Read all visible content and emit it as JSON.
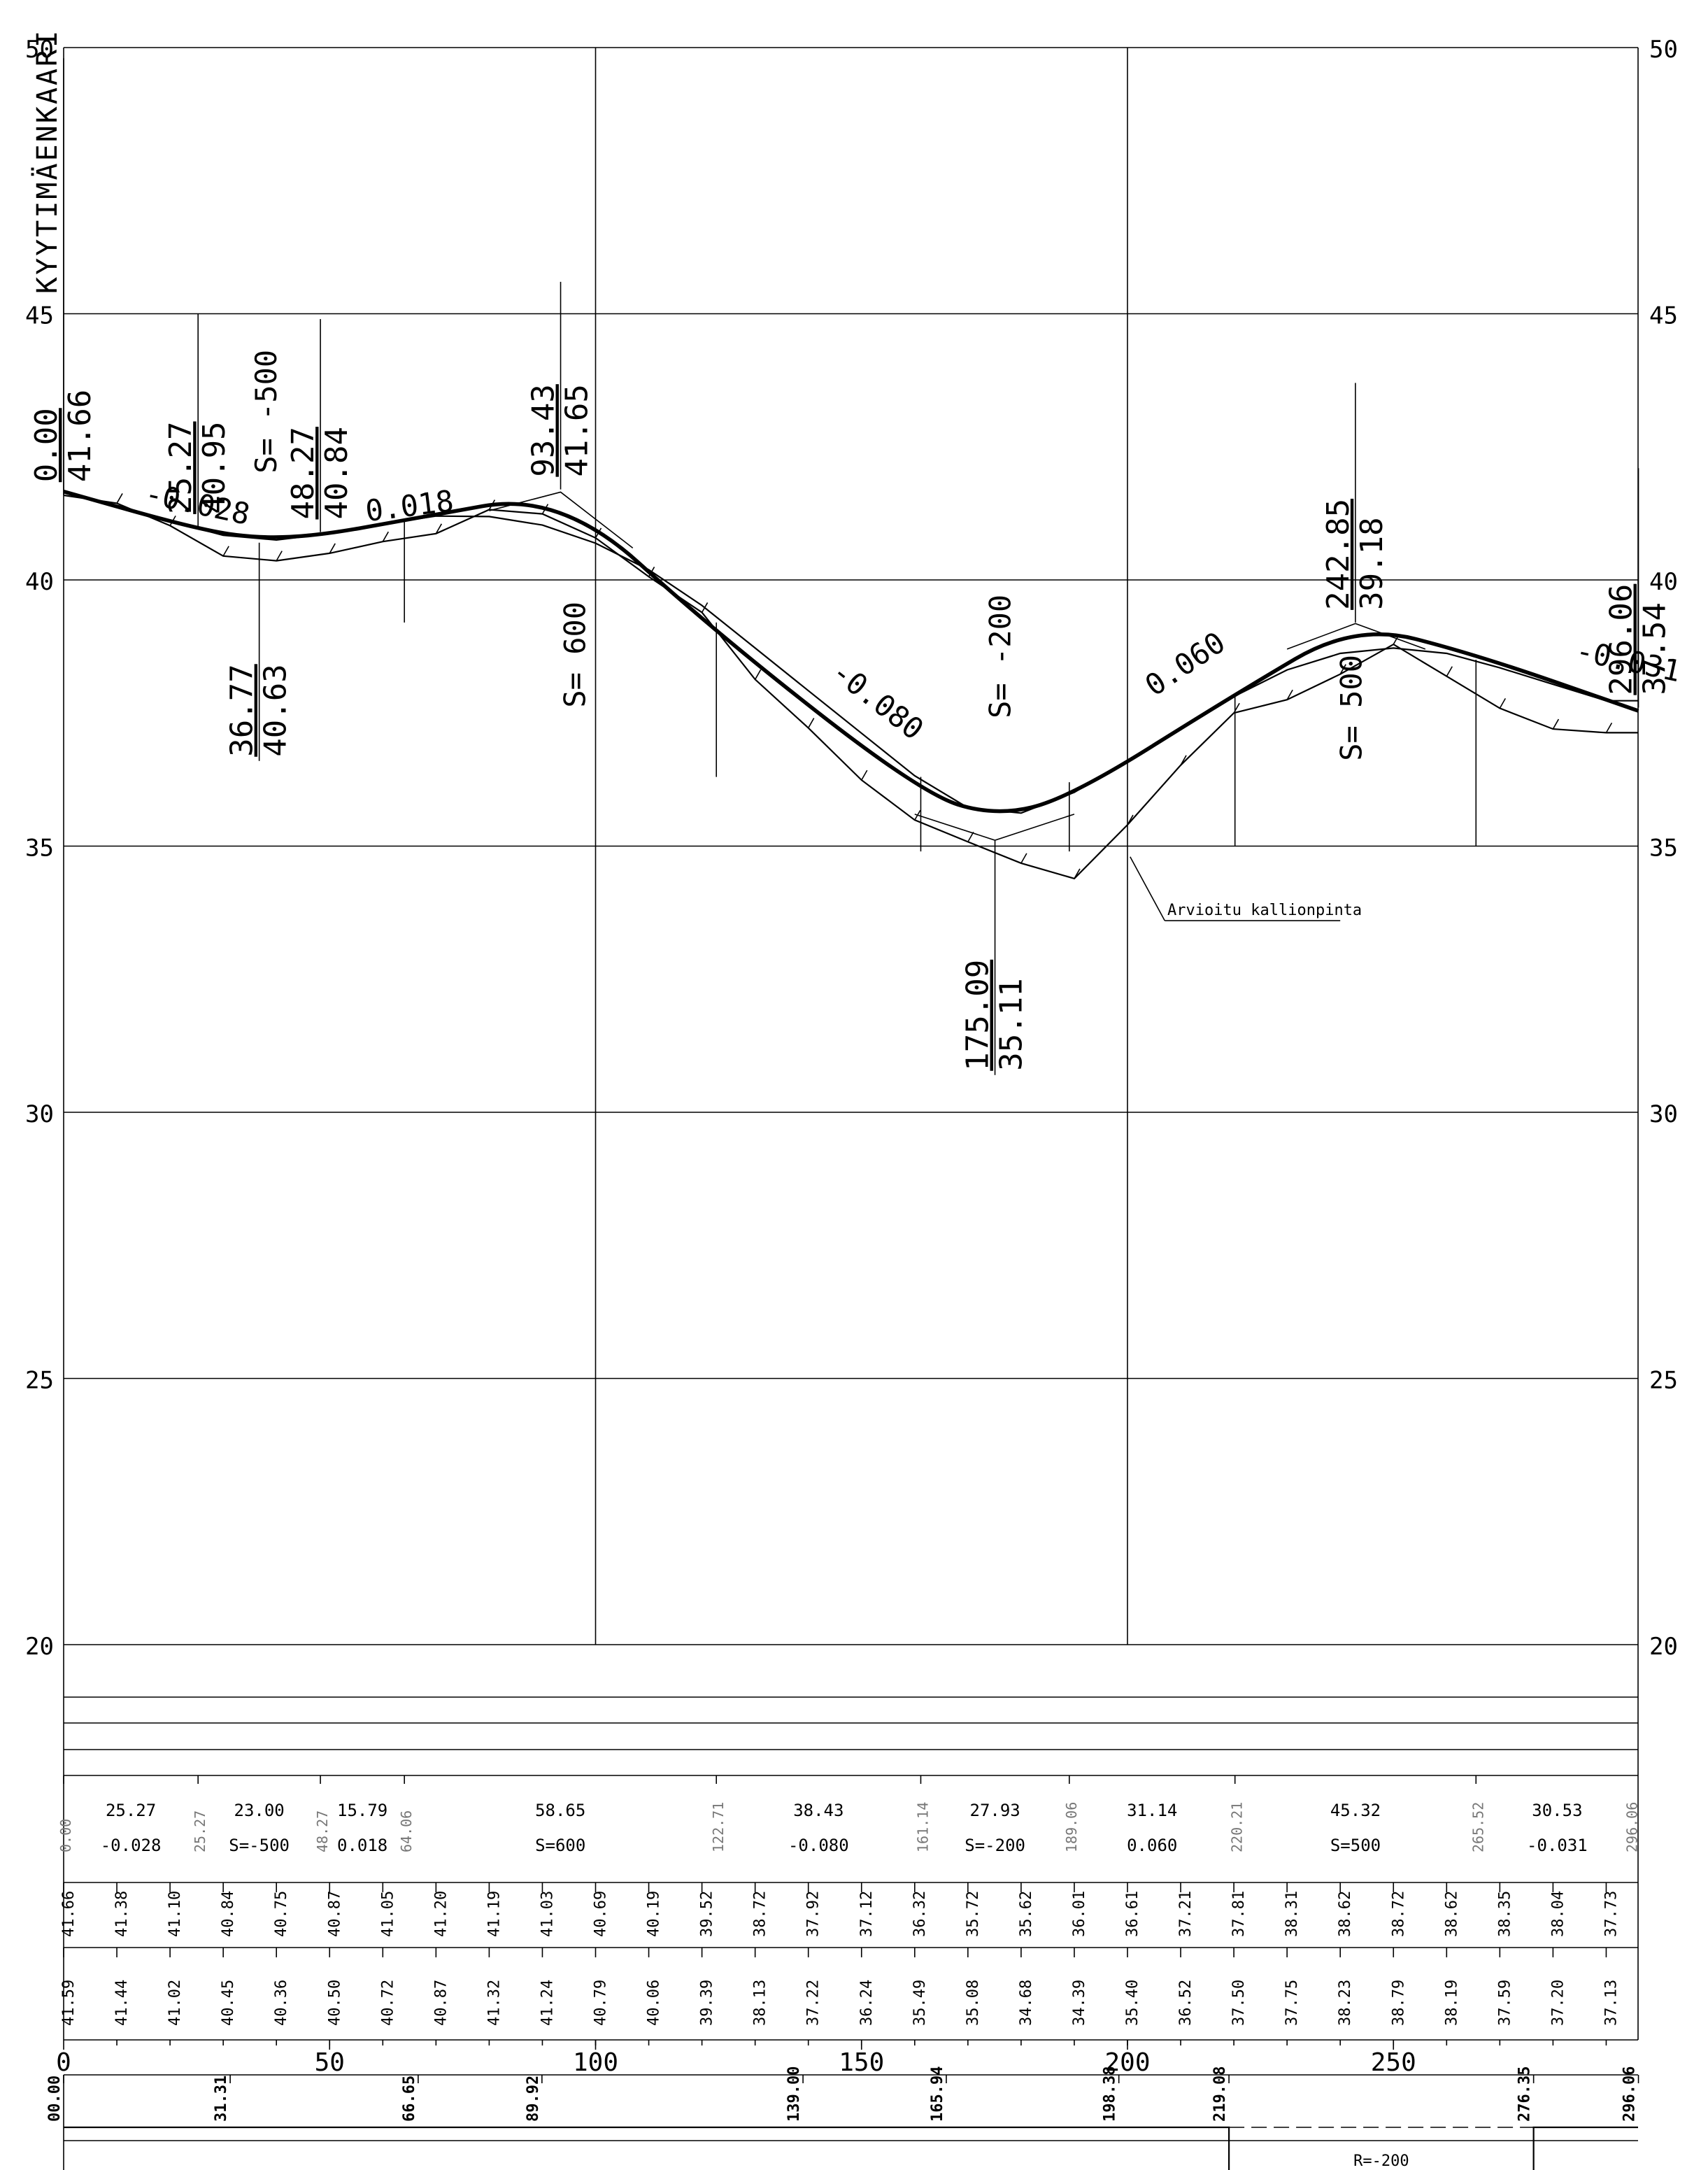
{
  "road_name": "KYYTIMÄENKAARI",
  "chart_data": {
    "type": "line",
    "title": "",
    "xlabel": "",
    "ylabel": "",
    "xlim": [
      0,
      296.06
    ],
    "ylim": [
      20,
      50
    ],
    "y_ticks": [
      "50",
      "45",
      "40",
      "35",
      "30",
      "25",
      "20"
    ],
    "x_ticks": [
      "0",
      "50",
      "100",
      "150",
      "200",
      "250"
    ],
    "grid": true,
    "design_line": {
      "x": [
        0,
        25.27,
        36.77,
        48.27,
        64.06,
        93.43,
        122.71,
        161.14,
        175.09,
        189.06,
        220.21,
        242.85,
        265.52,
        296.06
      ],
      "y": [
        41.66,
        40.95,
        40.78,
        40.84,
        41.12,
        41.65,
        39.0,
        36.0,
        35.56,
        35.9,
        37.85,
        39.18,
        38.6,
        37.54
      ]
    },
    "ground_line": {
      "x": [
        0,
        10,
        20,
        30,
        40,
        50,
        60,
        70,
        80,
        90,
        100,
        110,
        120,
        130,
        140,
        150,
        160,
        170,
        180,
        190,
        200,
        210,
        220,
        230,
        240,
        250,
        260,
        270,
        280,
        290,
        296.06
      ],
      "y": [
        41.66,
        41.38,
        41.1,
        40.84,
        40.75,
        40.87,
        41.05,
        41.2,
        41.19,
        41.03,
        40.69,
        40.19,
        39.52,
        38.72,
        37.92,
        37.12,
        36.32,
        35.72,
        35.62,
        36.01,
        36.61,
        37.21,
        37.81,
        38.31,
        38.62,
        38.72,
        38.62,
        38.35,
        38.04,
        37.73,
        37.73
      ]
    },
    "rock_line": {
      "x": [
        0,
        10,
        20,
        30,
        40,
        50,
        60,
        70,
        80,
        90,
        100,
        110,
        120,
        130,
        140,
        150,
        160,
        170,
        180,
        190,
        200,
        210,
        220,
        230,
        240,
        250,
        260,
        270,
        280,
        290,
        296.06
      ],
      "y": [
        41.59,
        41.44,
        41.02,
        40.45,
        40.36,
        40.5,
        40.72,
        40.87,
        41.32,
        41.24,
        40.79,
        40.06,
        39.39,
        38.13,
        37.22,
        36.24,
        35.49,
        35.08,
        34.68,
        34.39,
        35.4,
        36.52,
        37.5,
        37.75,
        38.23,
        38.79,
        38.19,
        37.59,
        37.2,
        37.13,
        37.13
      ]
    },
    "grades": [
      {
        "label": "-0.028",
        "x": 15,
        "y": 41.45
      },
      {
        "label": "0.018",
        "x": 57,
        "y": 41.1
      },
      {
        "label": "-0.080",
        "x": 144,
        "y": 38.2
      },
      {
        "label": "0.060",
        "x": 205,
        "y": 37.8
      },
      {
        "label": "-0.031",
        "x": 284,
        "y": 38.5
      }
    ],
    "vertical_curve_labels": [
      {
        "label": "S= -500",
        "x": 40,
        "y": 42.0
      },
      {
        "label": "S= 600",
        "x": 98,
        "y": 37.6
      },
      {
        "label": "S= -200",
        "x": 178,
        "y": 37.4
      },
      {
        "label": "S= 500",
        "x": 244,
        "y": 36.6
      }
    ],
    "station_labels": [
      {
        "sta": "0.00",
        "elev": "41.66",
        "x": 0,
        "top": 49.8,
        "bottom": 41.6,
        "flip": false
      },
      {
        "sta": "25.27",
        "elev": "40.95",
        "x": 25.27,
        "top": 45.0,
        "bottom": 41.0,
        "flip": false
      },
      {
        "sta": "48.27",
        "elev": "40.84",
        "x": 48.27,
        "top": 44.9,
        "bottom": 40.9,
        "flip": false
      },
      {
        "sta": "93.43",
        "elev": "41.65",
        "x": 93.43,
        "top": 45.6,
        "bottom": 41.7,
        "flip": false
      },
      {
        "sta": "242.85",
        "elev": "39.18",
        "x": 242.85,
        "top": 43.7,
        "bottom": 39.2,
        "flip": false
      },
      {
        "sta": "296.06",
        "elev": "37.54",
        "x": 296.06,
        "top": 42.1,
        "bottom": 37.6,
        "flip": false
      },
      {
        "sta": "36.77",
        "elev": "40.63",
        "x": 36.77,
        "top": 40.7,
        "bottom": 36.6,
        "flip": true
      },
      {
        "sta": "175.09",
        "elev": "35.11",
        "x": 175.09,
        "top": 35.1,
        "bottom": 30.7,
        "flip": true
      }
    ],
    "annotation": "Arvioitu kallionpinta"
  },
  "table": {
    "grade_segments": [
      {
        "length": "25.27",
        "grade": "-0.028",
        "start": "0.00"
      },
      {
        "length": "23.00",
        "grade": "S=-500",
        "start": "25.27"
      },
      {
        "length": "15.79",
        "grade": "0.018",
        "start": "48.27"
      },
      {
        "length": "58.65",
        "grade": "S=600",
        "start": "64.06"
      },
      {
        "length": "38.43",
        "grade": "-0.080",
        "start": "122.71"
      },
      {
        "length": "27.93",
        "grade": "S=-200",
        "start": "161.14"
      },
      {
        "length": "31.14",
        "grade": "0.060",
        "start": "189.06"
      },
      {
        "length": "45.32",
        "grade": "S=500",
        "start": "220.21"
      },
      {
        "length": "30.53",
        "grade": "-0.031",
        "start": "265.52"
      }
    ],
    "end_station": "296.06",
    "ground_elevations": [
      "41.66",
      "41.38",
      "41.10",
      "40.84",
      "40.75",
      "40.87",
      "41.05",
      "41.20",
      "41.19",
      "41.03",
      "40.69",
      "40.19",
      "39.52",
      "38.72",
      "37.92",
      "37.12",
      "36.32",
      "35.72",
      "35.62",
      "36.01",
      "36.61",
      "37.21",
      "37.81",
      "38.31",
      "38.62",
      "38.72",
      "38.62",
      "38.35",
      "38.04",
      "37.73"
    ],
    "rock_elevations": [
      "41.59",
      "41.44",
      "41.02",
      "40.45",
      "40.36",
      "40.50",
      "40.72",
      "40.87",
      "41.32",
      "41.24",
      "40.79",
      "40.06",
      "39.39",
      "38.13",
      "37.22",
      "36.24",
      "35.49",
      "35.08",
      "34.68",
      "34.39",
      "35.40",
      "36.52",
      "37.50",
      "37.75",
      "38.23",
      "38.79",
      "38.19",
      "37.59",
      "37.20",
      "37.13"
    ],
    "horizontal_stations": [
      "00.00",
      "31.31",
      "66.65",
      "89.92",
      "139.00",
      "165.94",
      "198.38",
      "219.08",
      "276.35",
      "296.06"
    ],
    "curve_label": "R=-200",
    "curve_from": 219.08,
    "curve_to": 276.35
  }
}
